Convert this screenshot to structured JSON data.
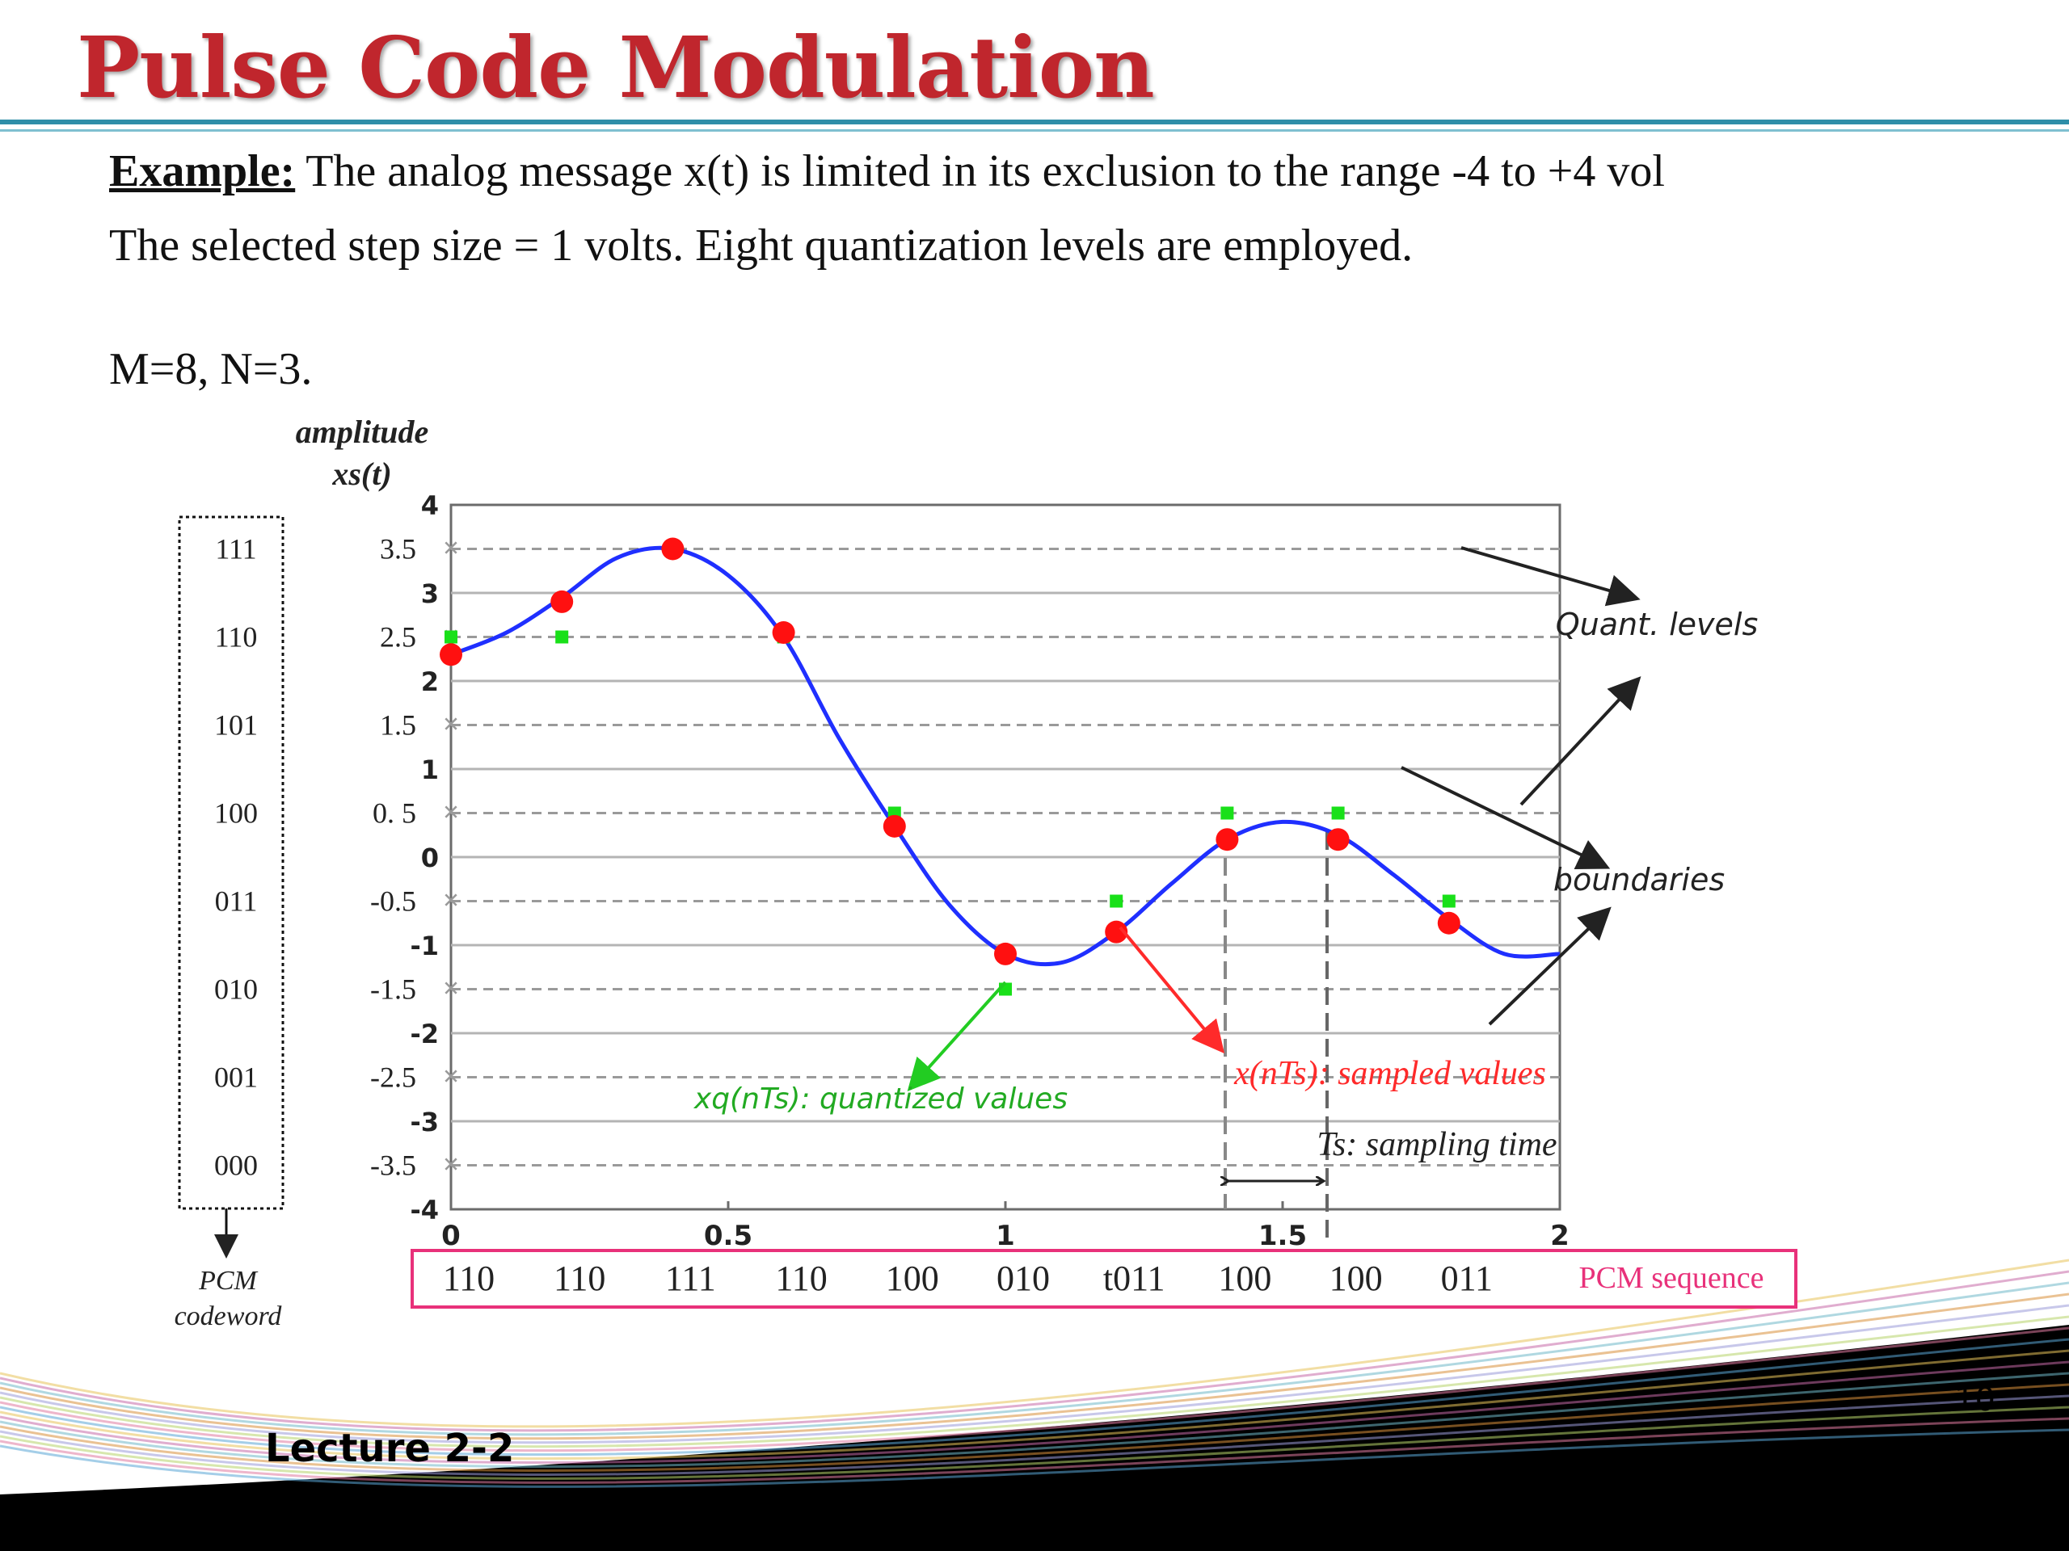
{
  "slide": {
    "title": "Pulse Code Modulation",
    "example_label": "Example:",
    "line1_rest": " The analog message x(t) is limited in its exclusion to the range -4 to +4 vol",
    "line2": "The selected step size = 1 volts. Eight quantization levels are employed.",
    "line3": "M=8, N=3.",
    "footer": "Lecture 2-2",
    "page_number": "10"
  },
  "figure": {
    "ylabel_line1": "amplitude",
    "ylabel_line2": "xs(t)",
    "codeword_label_line1": "PCM",
    "codeword_label_line2": "codeword",
    "pcm_sequence_label": "PCM sequence",
    "annotations": {
      "quant_levels": "Quant. levels",
      "boundaries": "boundaries",
      "quantized": "xq(nTs): quantized values",
      "sampled": "x(nTs): sampled values",
      "ts": "Ts: sampling time"
    },
    "colors": {
      "signal": "#1f2fff",
      "sample": "#ff1010",
      "quantized": "#19e019",
      "sampled_arrow": "#ff2a2a",
      "quantized_arrow": "#22cc22",
      "pcm_box": "#e8317a"
    }
  },
  "chart_data": {
    "type": "line",
    "xlim": [
      0,
      2
    ],
    "ylim": [
      -4,
      4
    ],
    "xticks": [
      "0",
      "0.5",
      "1",
      "1.5",
      "2"
    ],
    "yticks_boundaries": [
      "4",
      "3",
      "2",
      "1",
      "0",
      "-1",
      "-2",
      "-3",
      "-4"
    ],
    "quant_levels": [
      {
        "level": "3.5",
        "code": "111"
      },
      {
        "level": "2.5",
        "code": "110"
      },
      {
        "level": "1.5",
        "code": "101"
      },
      {
        "level": "0. 5",
        "code": "100"
      },
      {
        "level": "-0.5",
        "code": "011"
      },
      {
        "level": "-1.5",
        "code": "010"
      },
      {
        "level": "-2.5",
        "code": "001"
      },
      {
        "level": "-3.5",
        "code": "000"
      }
    ],
    "grid": true,
    "signal": {
      "x": [
        0,
        0.1,
        0.2,
        0.3,
        0.4,
        0.5,
        0.6,
        0.7,
        0.8,
        0.9,
        1.0,
        1.1,
        1.2,
        1.3,
        1.4,
        1.5,
        1.6,
        1.7,
        1.8,
        1.9,
        2.0
      ],
      "y": [
        2.3,
        2.55,
        2.95,
        3.4,
        3.5,
        3.2,
        2.5,
        1.35,
        0.35,
        -0.55,
        -1.1,
        -1.2,
        -0.85,
        -0.3,
        0.2,
        0.4,
        0.25,
        -0.2,
        -0.7,
        -1.1,
        -1.1
      ]
    },
    "samples": {
      "x": [
        0,
        0.2,
        0.4,
        0.6,
        0.8,
        1.0,
        1.2,
        1.4,
        1.6,
        1.8
      ],
      "sampled": [
        2.3,
        2.9,
        3.5,
        2.55,
        0.35,
        -1.1,
        -0.85,
        0.2,
        0.2,
        -0.75
      ],
      "quantized": [
        2.5,
        2.5,
        3.5,
        2.5,
        0.5,
        -1.5,
        -0.5,
        0.5,
        0.5,
        -0.5
      ]
    },
    "pcm_sequence": [
      "110",
      "110",
      "111",
      "110",
      "100",
      "010",
      "t011",
      "100",
      "100",
      "011"
    ]
  }
}
